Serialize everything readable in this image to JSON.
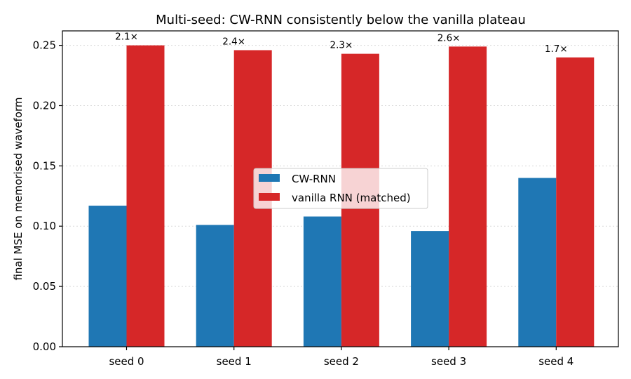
{
  "chart_data": {
    "type": "bar",
    "title": "Multi-seed: CW-RNN consistently below the vanilla plateau",
    "xlabel": "",
    "ylabel": "final MSE on memorised waveform",
    "categories": [
      "seed 0",
      "seed 1",
      "seed 2",
      "seed 3",
      "seed 4"
    ],
    "series": [
      {
        "name": "CW-RNN",
        "color": "#1f77b4",
        "values": [
          0.117,
          0.101,
          0.108,
          0.096,
          0.14
        ]
      },
      {
        "name": "vanilla RNN (matched)",
        "color": "#d62728",
        "values": [
          0.25,
          0.246,
          0.243,
          0.249,
          0.24
        ]
      }
    ],
    "bar_labels": [
      "2.1×",
      "2.4×",
      "2.3×",
      "2.6×",
      "1.7×"
    ],
    "ylim": [
      0,
      0.262
    ],
    "yticks": [
      "0.00",
      "0.05",
      "0.10",
      "0.15",
      "0.20",
      "0.25"
    ],
    "grid": "horizontal",
    "legend_position": "center"
  }
}
